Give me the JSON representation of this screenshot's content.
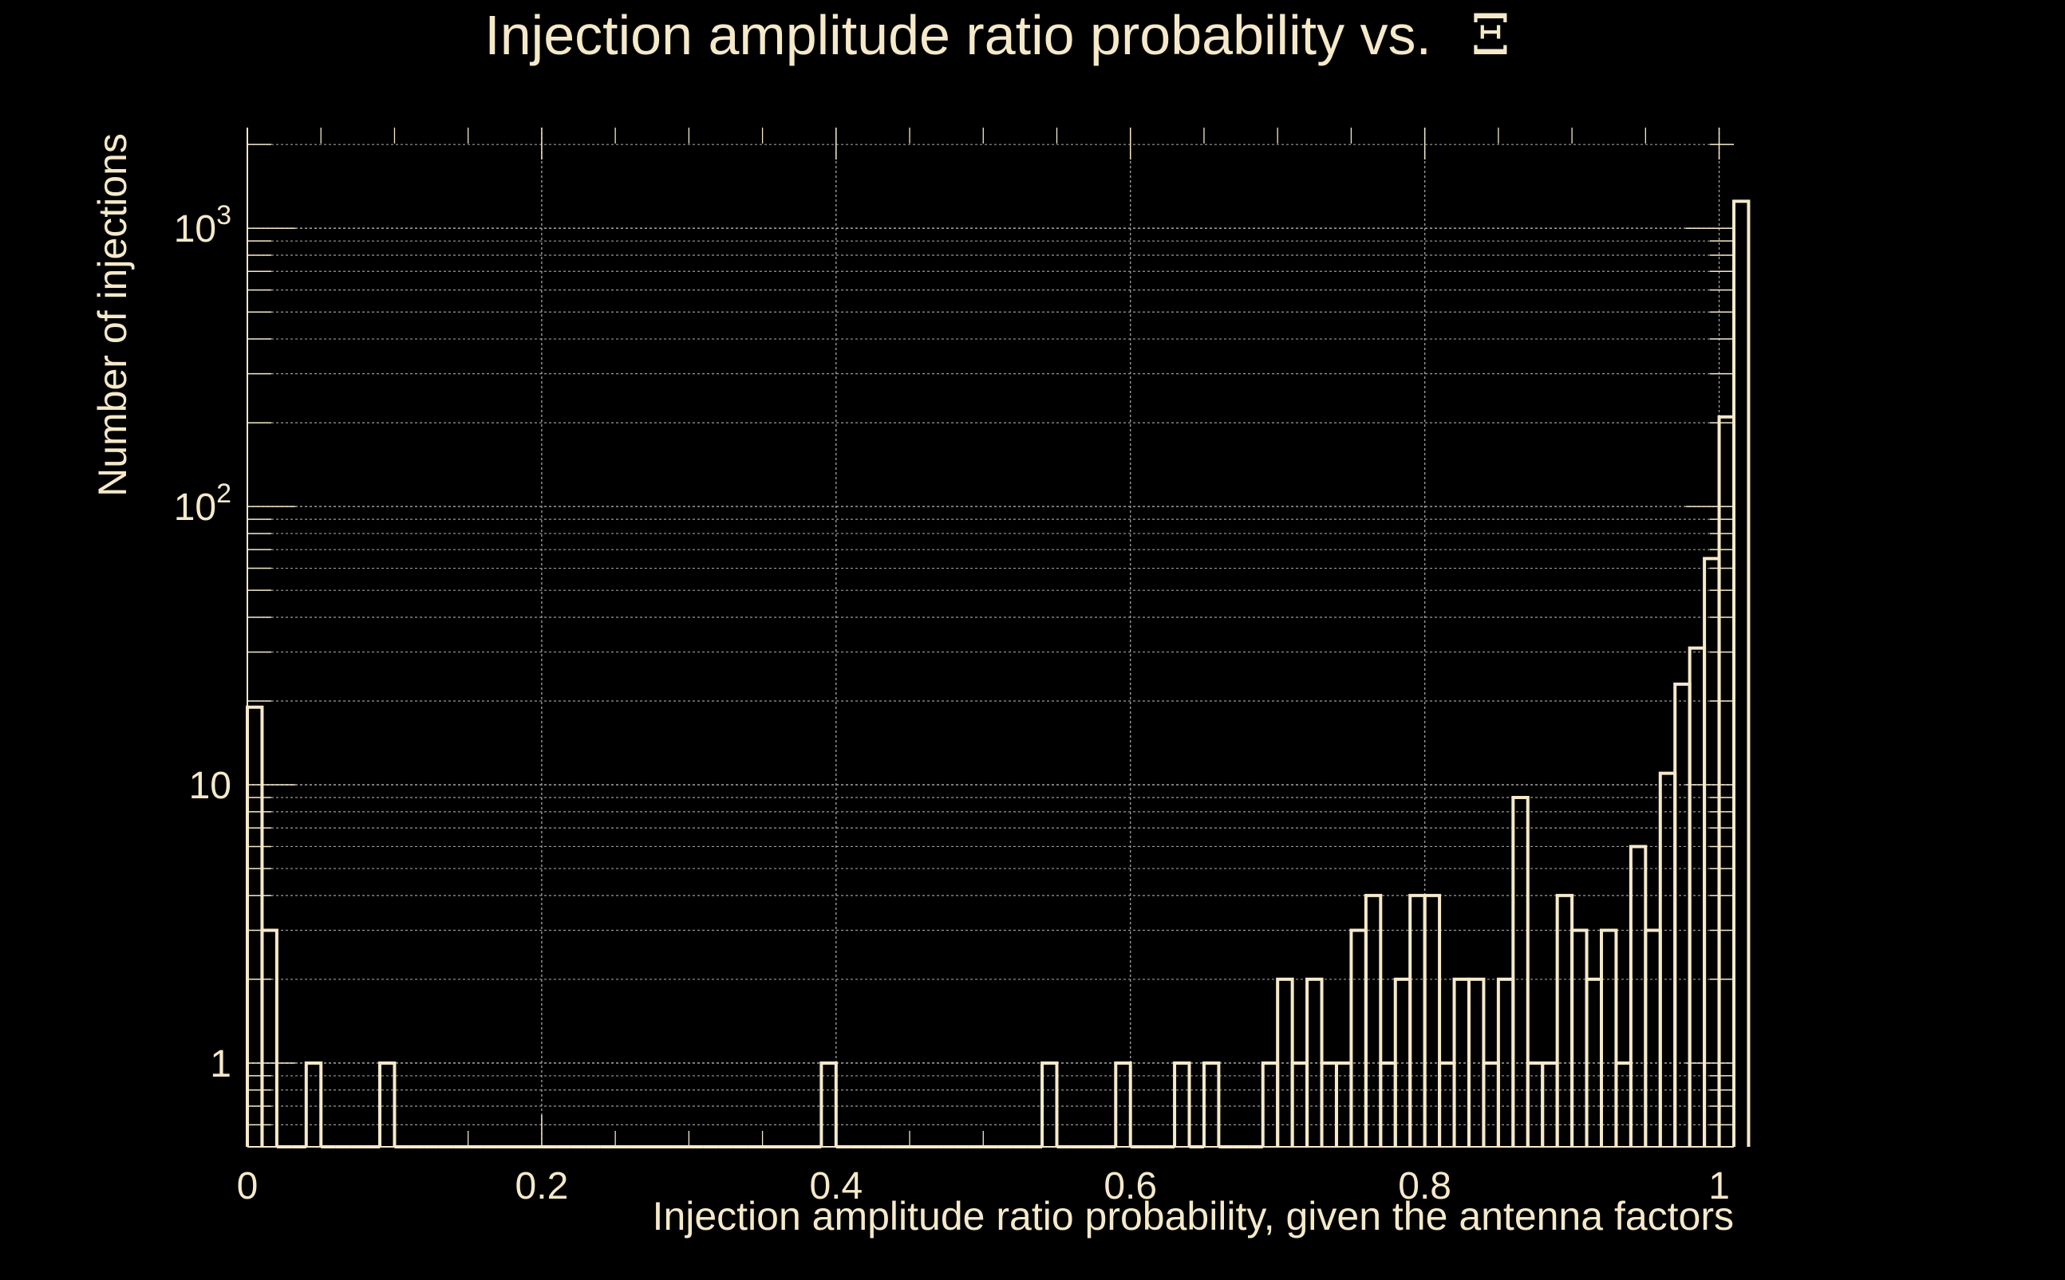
{
  "colors": {
    "background": "#000000",
    "foreground": "#F5E9C9",
    "grid": "#9A9A9A"
  },
  "chart_data": {
    "type": "histogram",
    "title": "Injection amplitude ratio probability vs.",
    "title_symbol": "Ξ",
    "xlabel": "Injection amplitude ratio probability, given the antenna factors",
    "ylabel": "Number of injections",
    "xlim": [
      0,
      1.01
    ],
    "ylim": [
      0.5,
      2300
    ],
    "yscale": "log",
    "grid": true,
    "x_ticks": [
      {
        "value": 0,
        "label": "0"
      },
      {
        "value": 0.2,
        "label": "0.2"
      },
      {
        "value": 0.4,
        "label": "0.4"
      },
      {
        "value": 0.6,
        "label": "0.6"
      },
      {
        "value": 0.8,
        "label": "0.8"
      },
      {
        "value": 1,
        "label": "1"
      }
    ],
    "y_ticks": [
      {
        "value": 1,
        "base": "1",
        "exp": ""
      },
      {
        "value": 10,
        "base": "10",
        "exp": ""
      },
      {
        "value": 100,
        "base": "10",
        "exp": "2"
      },
      {
        "value": 1000,
        "base": "10",
        "exp": "3"
      }
    ],
    "bin_width": 0.01,
    "bin_start": 0,
    "counts": [
      19,
      3,
      0,
      0,
      1,
      0,
      0,
      0,
      0,
      1,
      0,
      0,
      0,
      0,
      0,
      0,
      0,
      0,
      0,
      0,
      0,
      0,
      0,
      0,
      0,
      0,
      0,
      0,
      0,
      0,
      0,
      0,
      0,
      0,
      0,
      0,
      0,
      0,
      0,
      1,
      0,
      0,
      0,
      0,
      0,
      0,
      0,
      0,
      0,
      0,
      0,
      0,
      0,
      0,
      1,
      0,
      0,
      0,
      0,
      1,
      0,
      0,
      0,
      1,
      0,
      1,
      0,
      0,
      0,
      1,
      2,
      1,
      2,
      1,
      1,
      3,
      4,
      1,
      2,
      4,
      4,
      1,
      2,
      2,
      1,
      2,
      9,
      1,
      1,
      4,
      3,
      2,
      3,
      1,
      6,
      3,
      11,
      23,
      31,
      65,
      210,
      1250
    ]
  }
}
